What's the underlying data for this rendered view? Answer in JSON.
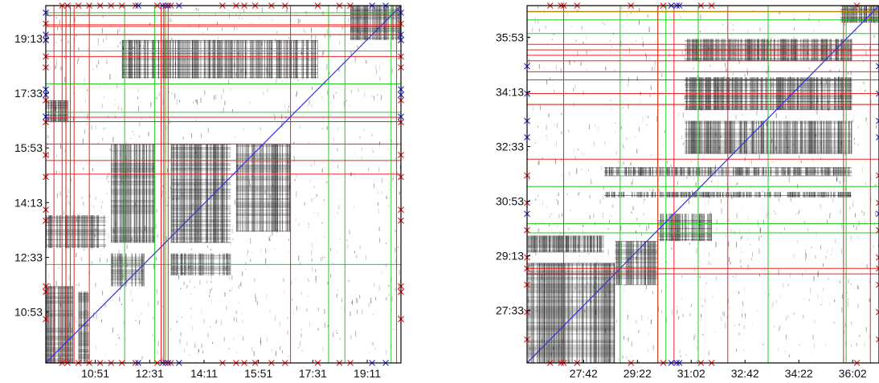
{
  "chart_data": [
    {
      "type": "heatmap",
      "title": "",
      "xlabel": "",
      "ylabel": "",
      "x_ticks": [
        "10:51",
        "12:31",
        "14:11",
        "15:51",
        "17:31",
        "19:11"
      ],
      "y_ticks": [
        "10:53",
        "12:33",
        "14:13",
        "15:53",
        "17:33",
        "19:13"
      ],
      "x_range_minutes": [
        560,
        1213
      ],
      "y_range_minutes": [
        560,
        1213
      ],
      "grid": false,
      "diagonal_color": "#3333dd",
      "blocks": [
        {
          "x": [
            560,
            610
          ],
          "y": [
            560,
            700
          ]
        },
        {
          "x": [
            620,
            640
          ],
          "y": [
            560,
            690
          ]
        },
        {
          "x": [
            680,
            740
          ],
          "y": [
            700,
            760
          ]
        },
        {
          "x": [
            680,
            760
          ],
          "y": [
            780,
            960
          ]
        },
        {
          "x": [
            790,
            900
          ],
          "y": [
            780,
            960
          ]
        },
        {
          "x": [
            910,
            1010
          ],
          "y": [
            800,
            960
          ]
        },
        {
          "x": [
            560,
            670
          ],
          "y": [
            770,
            830
          ]
        },
        {
          "x": [
            790,
            900
          ],
          "y": [
            720,
            760
          ]
        },
        {
          "x": [
            700,
            1060
          ],
          "y": [
            1080,
            1150
          ]
        },
        {
          "x": [
            560,
            600
          ],
          "y": [
            1000,
            1040
          ]
        },
        {
          "x": [
            1120,
            1213
          ],
          "y": [
            1150,
            1213
          ]
        }
      ],
      "red_vlines": [
        575,
        590,
        597,
        605,
        612,
        640,
        772,
        777,
        785,
        1010,
        1205
      ],
      "red_hlines": [
        905,
        930,
        960,
        1001,
        1009,
        1120,
        1160,
        1175,
        1178,
        1195
      ],
      "green_vlines": [
        597,
        705,
        760,
        777,
        780,
        1080,
        1110,
        1195
      ],
      "green_hlines": [
        740,
        1018,
        1070,
        1130,
        1160,
        1200
      ],
      "red_markers_x": [
        590,
        600,
        620,
        640,
        660,
        680,
        700,
        725,
        765,
        780,
        790,
        885,
        910,
        925,
        945,
        975,
        1000,
        1060,
        1100,
        1120
      ],
      "blue_markers_x": [
        730,
        775,
        785,
        805,
        1160,
        1185
      ],
      "red_markers_y": [
        640,
        690,
        700,
        820,
        840,
        900,
        940,
        1000,
        1040,
        1100,
        1120,
        1150,
        1180
      ],
      "blue_markers_y": [
        1010,
        1050,
        1060,
        1150,
        1160,
        1200
      ]
    },
    {
      "type": "heatmap",
      "title": "",
      "xlabel": "",
      "ylabel": "",
      "x_ticks": [
        "27:42",
        "29:22",
        "31:02",
        "32:42",
        "34:22",
        "36:02"
      ],
      "y_ticks": [
        "27:33",
        "29:13",
        "30:53",
        "32:33",
        "34:13",
        "35:53"
      ],
      "x_range_minutes": [
        1557,
        2211
      ],
      "y_range_minutes": [
        1557,
        2211
      ],
      "grid": false,
      "diagonal_color": "#3333dd",
      "blocks": [
        {
          "x": [
            1557,
            1720
          ],
          "y": [
            1557,
            1740
          ]
        },
        {
          "x": [
            1720,
            1800
          ],
          "y": [
            1700,
            1780
          ]
        },
        {
          "x": [
            1800,
            1900
          ],
          "y": [
            1780,
            1830
          ]
        },
        {
          "x": [
            1850,
            2160
          ],
          "y": [
            1940,
            2000
          ]
        },
        {
          "x": [
            1850,
            2160
          ],
          "y": [
            2020,
            2080
          ]
        },
        {
          "x": [
            1850,
            2160
          ],
          "y": [
            2110,
            2150
          ]
        },
        {
          "x": [
            1557,
            1700
          ],
          "y": [
            1760,
            1790
          ]
        },
        {
          "x": [
            1700,
            2160
          ],
          "y": [
            1900,
            1915
          ]
        },
        {
          "x": [
            1700,
            2160
          ],
          "y": [
            1860,
            1870
          ]
        },
        {
          "x": [
            2140,
            2211
          ],
          "y": [
            2180,
            2211
          ]
        }
      ],
      "red_vlines": [
        1625,
        1800,
        1830,
        1930,
        2145,
        2195
      ],
      "red_hlines": [
        1720,
        1730,
        1930,
        2030,
        2050,
        2075,
        2090,
        2110,
        2120,
        2130,
        2140
      ],
      "green_vlines": [
        1730,
        1800,
        1815,
        1875,
        2005,
        2150
      ],
      "green_hlines": [
        1795,
        1812,
        1880,
        2030,
        2160,
        2185
      ],
      "gold_hline": 2200,
      "red_markers_x": [
        1600,
        1620,
        1625,
        1650,
        1750,
        1810,
        1880,
        1900,
        2170
      ],
      "blue_markers_x": [
        1825,
        1835,
        1840
      ],
      "red_markers_y": [
        1600,
        1650,
        1700,
        1730,
        1750,
        1800,
        1850,
        1900
      ],
      "blue_markers_y": [
        1830,
        1970,
        2000,
        2050,
        2100
      ]
    }
  ]
}
